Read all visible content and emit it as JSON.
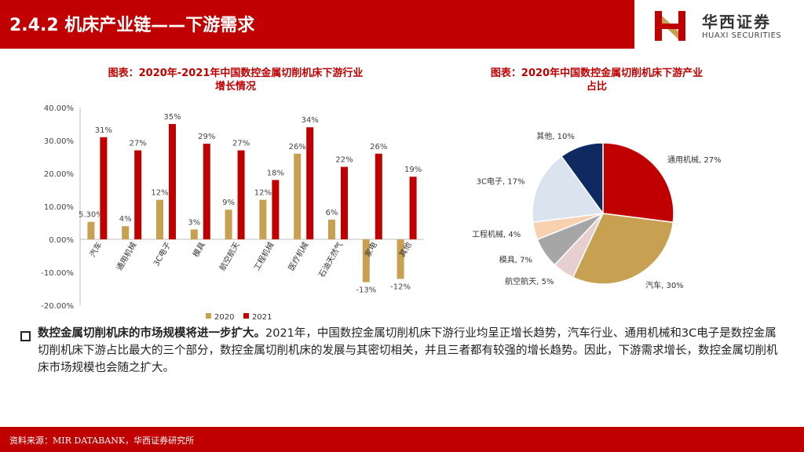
{
  "header": {
    "title": "2.4.2 机床产业链——下游需求"
  },
  "logo": {
    "cn": "华西证券",
    "en": "HUAXI SECURITIES"
  },
  "colors": {
    "red": "#c00000",
    "gold": "#c8a052",
    "navy": "#0f2a60"
  },
  "chart_data": [
    {
      "type": "bar",
      "title": "图表：2020年-2021年中国数控金属切削机床下游行业增长情况",
      "title_line1": "图表：2020年-2021年中国数控金属切削机床下游行业",
      "title_line2": "增长情况",
      "categories": [
        "汽车",
        "通用机械",
        "3C电子",
        "模具",
        "航空航天",
        "工程机械",
        "医疗机械",
        "石油天然气",
        "家电",
        "其他"
      ],
      "series": [
        {
          "name": "2020",
          "color": "#c8a052",
          "values": [
            5.3,
            4,
            12,
            3,
            9,
            12,
            26,
            6,
            -13,
            -12
          ],
          "labels": [
            "5.30%",
            "4%",
            "12%",
            "3%",
            "9%",
            "12%",
            "26%",
            "6%",
            "-13%",
            "-12%"
          ]
        },
        {
          "name": "2021",
          "color": "#c00000",
          "values": [
            31,
            27,
            35,
            29,
            27,
            18,
            34,
            22,
            26,
            19
          ],
          "labels": [
            "31%",
            "27%",
            "35%",
            "29%",
            "27%",
            "18%",
            "34%",
            "22%",
            "26%",
            "19%"
          ]
        }
      ],
      "ylim": [
        -20,
        40
      ],
      "yticks": [
        40,
        30,
        20,
        10,
        0,
        -10,
        -20
      ],
      "ytick_labels": [
        "40.00%",
        "30.00%",
        "20.00%",
        "10.00%",
        "0.00%",
        "-10.00%",
        "-20.00%"
      ],
      "legend": "bottom"
    },
    {
      "type": "pie",
      "title": "图表：2020年中国数控金属切削机床下游产业占比",
      "title_line1": "图表：2020年中国数控金属切削机床下游产业",
      "title_line2": "占比",
      "slices": [
        {
          "label": "通用机械, 27%",
          "value": 27,
          "color": "#c00000"
        },
        {
          "label": "汽车, 30%",
          "value": 30,
          "color": "#c8a052"
        },
        {
          "label": "航空航天, 5%",
          "value": 5,
          "color": "#e8cfcf"
        },
        {
          "label": "模具, 7%",
          "value": 7,
          "color": "#a6a6a6"
        },
        {
          "label": "工程机械, 4%",
          "value": 4,
          "color": "#f8d2b0"
        },
        {
          "label": "3C电子, 17%",
          "value": 17,
          "color": "#dbe3ef"
        },
        {
          "label": "其他, 10%",
          "value": 10,
          "color": "#0f2a60"
        }
      ]
    }
  ],
  "body": {
    "bold": "数控金属切削机床的市场规模将进一步扩大。",
    "text": "2021年，中国数控金属切削机床下游行业均呈正增长趋势，汽车行业、通用机械和3C电子是数控金属切削机床下游占比最大的三个部分，数控金属切削机床的发展与其密切相关，并且三者都有较强的增长趋势。因此，下游需求增长，数控金属切削机床市场规模也会随之扩大。"
  },
  "footer": {
    "source": "资料来源：MIR DATABANK，华西证券研究所"
  }
}
